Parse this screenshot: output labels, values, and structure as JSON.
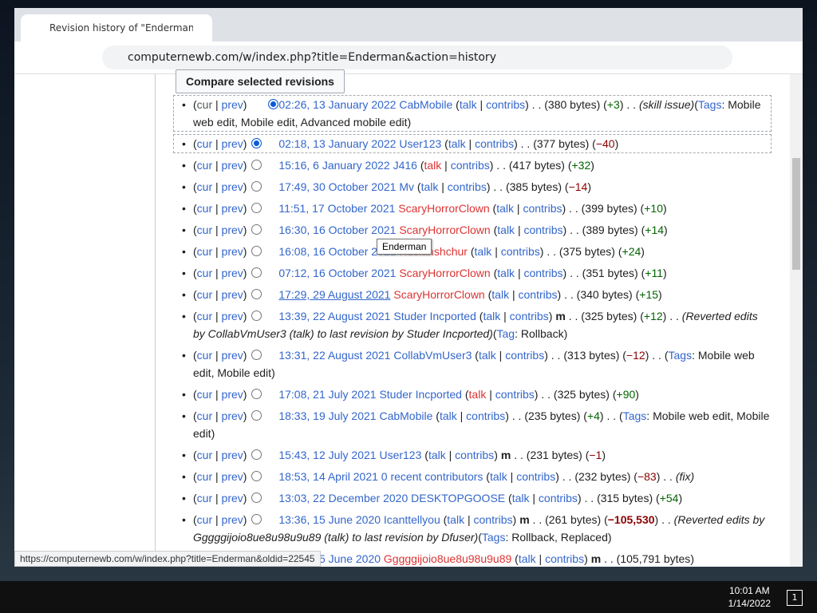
{
  "browser": {
    "tab_title": "Revision history of \"Enderman\" -",
    "url": "computernewb.com/w/index.php?title=Enderman&action=history"
  },
  "history": {
    "compare_button": "Compare selected revisions",
    "cur_label": "cur",
    "prev_label": "prev",
    "talk_label": "talk",
    "contribs_label": "contribs",
    "minor_label": "m",
    "revisions": [
      {
        "time": "02:26, 13 January 2022",
        "user": "CabMobile",
        "user_red": false,
        "talk_red": false,
        "minor": false,
        "size": "380 bytes",
        "diff": "+3",
        "comment": "skill issue",
        "tags_label": "Tags",
        "tags": "Mobile web edit, Mobile edit, Advanced mobile edit",
        "first": true,
        "checked": true
      },
      {
        "time": "02:18, 13 January 2022",
        "user": "User123",
        "user_red": false,
        "talk_red": false,
        "minor": false,
        "size": "377 bytes",
        "diff": "−40",
        "checked": true
      },
      {
        "time": "15:16, 6 January 2022",
        "user": "J416",
        "user_red": false,
        "talk_red": true,
        "minor": false,
        "size": "417 bytes",
        "diff": "+32"
      },
      {
        "time": "17:49, 30 October 2021",
        "user": "Mv",
        "user_red": false,
        "talk_red": false,
        "minor": false,
        "size": "385 bytes",
        "diff": "−14"
      },
      {
        "time": "11:51, 17 October 2021",
        "user": "ScaryHorrorClown",
        "user_red": true,
        "talk_red": false,
        "minor": false,
        "size": "399 bytes",
        "diff": "+10"
      },
      {
        "time": "16:30, 16 October 2021",
        "user": "ScaryHorrorClown",
        "user_red": true,
        "talk_red": false,
        "minor": false,
        "size": "389 bytes",
        "diff": "+14"
      },
      {
        "time": "16:08, 16 October 2021",
        "user": "Ruslanshchur",
        "user_red": true,
        "talk_red": false,
        "minor": false,
        "size": "375 bytes",
        "diff": "+24"
      },
      {
        "time": "07:12, 16 October 2021",
        "user": "ScaryHorrorClown",
        "user_red": true,
        "talk_red": false,
        "minor": false,
        "size": "351 bytes",
        "diff": "+11"
      },
      {
        "time": "17:29, 29 August 2021",
        "user": "ScaryHorrorClown",
        "user_red": true,
        "talk_red": false,
        "minor": false,
        "size": "340 bytes",
        "diff": "+15",
        "hover": true
      },
      {
        "time": "13:39, 22 August 2021",
        "user": "Studer Incported",
        "user_red": false,
        "talk_red": false,
        "minor": true,
        "size": "325 bytes",
        "diff": "+12",
        "comment": "Reverted edits by CollabVmUser3 (talk) to last revision by Studer Incported",
        "tags_label": "Tag",
        "tags": "Rollback"
      },
      {
        "time": "13:31, 22 August 2021",
        "user": "CollabVmUser3",
        "user_red": false,
        "talk_red": false,
        "minor": false,
        "size": "313 bytes",
        "diff": "−12",
        "tags_label": "Tags",
        "tags": "Mobile web edit, Mobile edit"
      },
      {
        "time": "17:08, 21 July 2021",
        "user": "Studer Incported",
        "user_red": false,
        "talk_red": true,
        "minor": false,
        "size": "325 bytes",
        "diff": "+90"
      },
      {
        "time": "18:33, 19 July 2021",
        "user": "CabMobile",
        "user_red": false,
        "talk_red": false,
        "minor": false,
        "size": "235 bytes",
        "diff": "+4",
        "tags_label": "Tags",
        "tags": "Mobile web edit, Mobile edit"
      },
      {
        "time": "15:43, 12 July 2021",
        "user": "User123",
        "user_red": false,
        "talk_red": false,
        "minor": true,
        "size": "231 bytes",
        "diff": "−1"
      },
      {
        "time": "18:53, 14 April 2021",
        "user": "0 recent contributors",
        "user_red": false,
        "talk_red": false,
        "minor": false,
        "size": "232 bytes",
        "diff": "−83",
        "comment": "fix"
      },
      {
        "time": "13:03, 22 December 2020",
        "user": "DESKTOPGOOSE",
        "user_red": false,
        "talk_red": false,
        "minor": false,
        "size": "315 bytes",
        "diff": "+54"
      },
      {
        "time": "13:36, 15 June 2020",
        "user": "Icanttellyou",
        "user_red": false,
        "talk_red": false,
        "minor": true,
        "size": "261 bytes",
        "diff": "−105,530",
        "diff_bold": true,
        "comment": "Reverted edits by Gggggijoio8ue8u98u9u89 (talk) to last revision by Dfuser",
        "tags_label": "Tags",
        "tags": "Rollback, Replaced"
      },
      {
        "time": "13:35, 15 June 2020",
        "user": "Gggggijoio8ue8u98u9u89",
        "user_red": true,
        "talk_red": false,
        "minor": true,
        "size": "105,791 bytes"
      }
    ]
  },
  "tooltip": "Enderman",
  "status_url": "https://computernewb.com/w/index.php?title=Enderman&oldid=22545",
  "taskbar": {
    "time": "10:01 AM",
    "date": "1/14/2022",
    "notifications": "1"
  }
}
